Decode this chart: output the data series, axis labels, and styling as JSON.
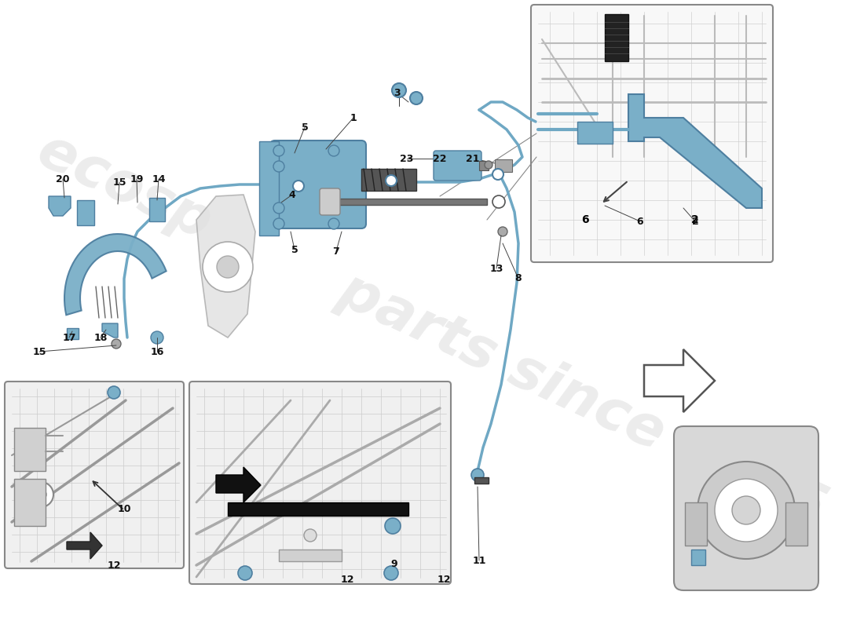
{
  "bg_color": "#ffffff",
  "part_color": "#7aafc8",
  "part_color_dark": "#4e7fa0",
  "part_color_light": "#a8cce0",
  "line_color": "#6fa8c4",
  "dark_color": "#333333",
  "gray_color": "#888888",
  "light_gray": "#cccccc",
  "inset_bg": "#f0f0f0",
  "watermark_color": "#d0d0d0",
  "figsize": [
    11.0,
    8.0
  ],
  "dpi": 100
}
